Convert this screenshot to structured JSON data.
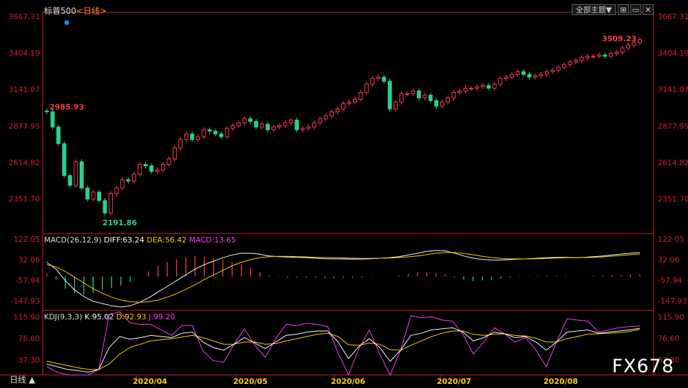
{
  "header": {
    "instrument": "标普500",
    "period_label": "<日线>",
    "indicator_button": "全部主题▼"
  },
  "colors": {
    "up": "#ff3b4b",
    "down": "#2ad18d",
    "axis": "#d81e2c",
    "diff": "#ffffff",
    "dea": "#ffd200",
    "macd_title": "#ff3bff",
    "k": "#ffffff",
    "d": "#ffd200",
    "j": "#ff3bff",
    "grid": "#8b0b13"
  },
  "macd_label": {
    "name": "MACD(26,12,9)",
    "diff": "DIFF:63.24",
    "dea": "DEA:56.42",
    "macd": "MACD:13.65"
  },
  "kdj_label": {
    "name": "KDJ(9,3,3)",
    "k": "K:95.02",
    "d": "D:92.93",
    "j": "J:99.20"
  },
  "bottom_left": "日线 ▲",
  "watermark": "FX678",
  "chart_data": [
    {
      "type": "candlestick",
      "title": "标普500",
      "y_ticks": [
        "3667.31",
        "3404.19",
        "3141.07",
        "2877.95",
        "2614.82",
        "2351.70"
      ],
      "x_ticks": [
        "2020/04",
        "2020/05",
        "2020/06",
        "2020/07",
        "2020/08"
      ],
      "annotations": [
        {
          "label": "2985.93"
        },
        {
          "label": "2191.86"
        },
        {
          "label": "3509.23"
        }
      ],
      "closes": [
        2980,
        2870,
        2750,
        2520,
        2450,
        2620,
        2430,
        2350,
        2400,
        2340,
        2250,
        2390,
        2430,
        2490,
        2480,
        2530,
        2600,
        2590,
        2550,
        2560,
        2600,
        2640,
        2720,
        2780,
        2820,
        2780,
        2800,
        2850,
        2840,
        2820,
        2800,
        2860,
        2880,
        2900,
        2930,
        2910,
        2870,
        2890,
        2850,
        2870,
        2880,
        2900,
        2920,
        2850,
        2860,
        2870,
        2900,
        2930,
        2950,
        2980,
        3000,
        3040,
        3050,
        3070,
        3120,
        3180,
        3220,
        3230,
        3200,
        3000,
        3050,
        3110,
        3110,
        3130,
        3080,
        3100,
        3060,
        3020,
        3050,
        3080,
        3120,
        3130,
        3150,
        3150,
        3160,
        3170,
        3150,
        3180,
        3220,
        3230,
        3250,
        3270,
        3250,
        3230,
        3240,
        3250,
        3270,
        3280,
        3300,
        3320,
        3340,
        3350,
        3370,
        3380,
        3380,
        3390,
        3380,
        3400,
        3410,
        3440,
        3460,
        3480,
        3500
      ],
      "macd_panel": {
        "y_ticks": [
          "122.05",
          "32.06",
          "-57.94",
          "-147.93"
        ],
        "diff": [
          20,
          -10,
          -60,
          -100,
          -130,
          -150,
          -160,
          -170,
          -175,
          -170,
          -155,
          -135,
          -110,
          -85,
          -60,
          -35,
          -10,
          10,
          25,
          40,
          52,
          60,
          60,
          55,
          48,
          45,
          43,
          42,
          40,
          38,
          36,
          35,
          35,
          34,
          34,
          36,
          38,
          40,
          45,
          52,
          60,
          68,
          72,
          70,
          60,
          48,
          38,
          33,
          30,
          30,
          32,
          34,
          36,
          38,
          40,
          42,
          42,
          40,
          42,
          45,
          48,
          52,
          56,
          60,
          63
        ],
        "dea": [
          10,
          0,
          -20,
          -45,
          -70,
          -95,
          -115,
          -132,
          -145,
          -152,
          -155,
          -152,
          -145,
          -132,
          -117,
          -98,
          -78,
          -55,
          -35,
          -15,
          5,
          20,
          32,
          40,
          45,
          46,
          46,
          45,
          44,
          42,
          41,
          40,
          39,
          38,
          37,
          37,
          38,
          39,
          41,
          44,
          48,
          54,
          60,
          63,
          63,
          59,
          53,
          46,
          41,
          37,
          35,
          35,
          35,
          36,
          37,
          39,
          40,
          40,
          41,
          42,
          44,
          47,
          50,
          53,
          56
        ],
        "hist": [
          20,
          -20,
          -80,
          -110,
          -120,
          -110,
          -90,
          -76,
          -60,
          -36,
          0,
          34,
          70,
          94,
          114,
          126,
          136,
          130,
          120,
          110,
          94,
          80,
          56,
          30,
          6,
          -2,
          -6,
          -6,
          -8,
          -8,
          -10,
          -10,
          -8,
          -8,
          -6,
          -2,
          0,
          2,
          8,
          16,
          24,
          28,
          24,
          14,
          -6,
          -22,
          -30,
          -26,
          -22,
          -14,
          -6,
          -2,
          2,
          4,
          6,
          6,
          4,
          0,
          2,
          6,
          8,
          10,
          12,
          14,
          14
        ]
      },
      "kdj_panel": {
        "y_ticks": [
          "115.90",
          "76.60",
          "37.30"
        ],
        "k": [
          30,
          25,
          20,
          18,
          15,
          20,
          60,
          80,
          75,
          78,
          82,
          80,
          78,
          86,
          88,
          70,
          60,
          55,
          66,
          78,
          68,
          58,
          70,
          82,
          84,
          88,
          90,
          90,
          70,
          40,
          62,
          76,
          60,
          35,
          55,
          82,
          86,
          92,
          94,
          96,
          88,
          72,
          78,
          88,
          85,
          78,
          80,
          70,
          55,
          70,
          88,
          90,
          92,
          86,
          88,
          90,
          92,
          95
        ],
        "d": [
          35,
          31,
          27,
          23,
          20,
          20,
          30,
          48,
          60,
          66,
          72,
          74,
          76,
          79,
          82,
          78,
          72,
          66,
          66,
          70,
          70,
          66,
          67,
          72,
          76,
          80,
          84,
          86,
          80,
          65,
          64,
          68,
          66,
          56,
          55,
          64,
          72,
          80,
          86,
          90,
          90,
          84,
          82,
          84,
          85,
          82,
          81,
          77,
          70,
          70,
          76,
          80,
          84,
          85,
          86,
          87,
          89,
          93
        ],
        "j": [
          25,
          15,
          8,
          8,
          5,
          20,
          120,
          144,
          105,
          102,
          102,
          92,
          82,
          100,
          100,
          54,
          36,
          33,
          66,
          94,
          64,
          42,
          76,
          102,
          100,
          104,
          102,
          98,
          50,
          -10,
          58,
          92,
          48,
          -7,
          55,
          118,
          114,
          116,
          110,
          108,
          84,
          48,
          70,
          96,
          85,
          70,
          78,
          56,
          25,
          70,
          112,
          110,
          108,
          88,
          92,
          96,
          98,
          99
        ]
      }
    }
  ]
}
